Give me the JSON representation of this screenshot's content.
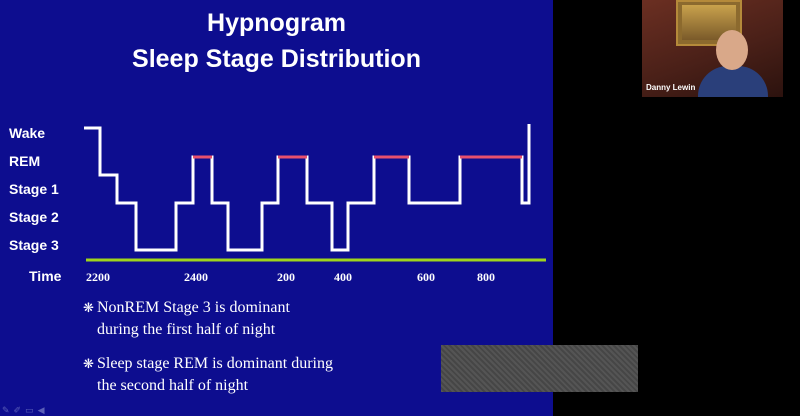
{
  "slide": {
    "title_line1": "Hypnogram",
    "title_line2": "Sleep Stage Distribution",
    "y_labels": [
      "Wake",
      "REM",
      "Stage 1",
      "Stage 2",
      "Stage 3"
    ],
    "time_label": "Time",
    "x_ticks": [
      "2200",
      "2400",
      "200",
      "400",
      "600",
      "800"
    ],
    "bullets": [
      {
        "mark": "❋",
        "line1": "NonREM Stage 3 is dominant",
        "line2": "during the first half of night"
      },
      {
        "mark": "❋",
        "line1": "Sleep stage REM is dominant during",
        "line2": "the second half of night"
      }
    ]
  },
  "video": {
    "participant_name": "Danny Lewin"
  },
  "colors": {
    "slide_background": "#0d0d8f",
    "stage_line": "#ffffff",
    "rem_highlight": "#e8506e",
    "baseline": "#9fd41c",
    "outside": "#000000"
  },
  "toolbar": {
    "icons": [
      "pen-icon",
      "pencil-icon",
      "screen-icon",
      "speaker-icon"
    ]
  }
}
